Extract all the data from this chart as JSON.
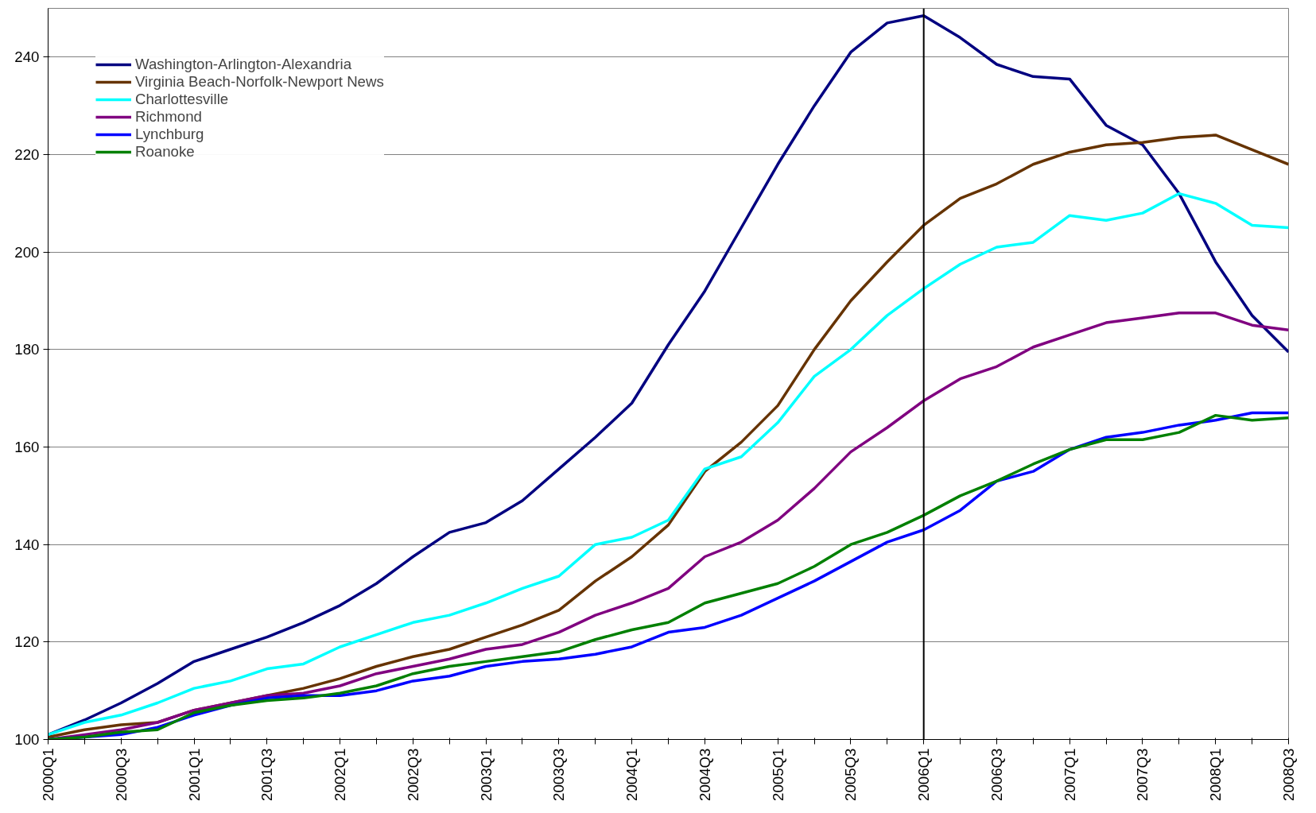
{
  "chart_data": {
    "type": "line",
    "categories": [
      "2000Q1",
      null,
      "2000Q3",
      null,
      "2001Q1",
      null,
      "2001Q3",
      null,
      "2002Q1",
      null,
      "2002Q3",
      null,
      "2003Q1",
      null,
      "2003Q3",
      null,
      "2004Q1",
      null,
      "2004Q3",
      null,
      "2005Q1",
      null,
      "2005Q3",
      null,
      "2006Q1",
      null,
      "2006Q3",
      null,
      "2007Q1",
      null,
      "2007Q3",
      null,
      "2008Q1",
      null,
      "2008Q3"
    ],
    "series": [
      {
        "name": "Washington-Arlington-Alexandria",
        "color": "#000080",
        "values": [
          101,
          104,
          107.5,
          111.5,
          116,
          118.5,
          121,
          124,
          127.5,
          132,
          137.5,
          142.5,
          144.5,
          149,
          155.5,
          162,
          169,
          181,
          192,
          205,
          218,
          230,
          241,
          247,
          248.5,
          244,
          238.5,
          236,
          235.5,
          226,
          222,
          212,
          198,
          187,
          179.5
        ]
      },
      {
        "name": "Virginia Beach-Norfolk-Newport News",
        "color": "#663300",
        "values": [
          100.5,
          102,
          103,
          103.5,
          106,
          107.5,
          109,
          110.5,
          112.5,
          115,
          117,
          118.5,
          121,
          123.5,
          126.5,
          132.5,
          137.5,
          144,
          155,
          161,
          168.5,
          180,
          190,
          198,
          205.5,
          211,
          214,
          218,
          220.5,
          222,
          222.5,
          223.5,
          224,
          221,
          218
        ]
      },
      {
        "name": "Charlottesville",
        "color": "#00ffff",
        "values": [
          101,
          103.5,
          105,
          107.5,
          110.5,
          112,
          114.5,
          115.5,
          119,
          121.5,
          124,
          125.5,
          128,
          131,
          133.5,
          140,
          141.5,
          145,
          155.5,
          158,
          165,
          174.5,
          180,
          187,
          192.5,
          197.5,
          201,
          202,
          207.5,
          206.5,
          208,
          212,
          210,
          205.5,
          205
        ]
      },
      {
        "name": "Richmond",
        "color": "#800080",
        "values": [
          100,
          101,
          102,
          103.5,
          106,
          107.5,
          109,
          109.5,
          111,
          113.5,
          115,
          116.5,
          118.5,
          119.5,
          122,
          125.5,
          128,
          131,
          137.5,
          140.5,
          145,
          151.5,
          159,
          164,
          169.5,
          174,
          176.5,
          180.5,
          183,
          185.5,
          186.5,
          187.5,
          187.5,
          185,
          184
        ]
      },
      {
        "name": "Lynchburg",
        "color": "#0000ff",
        "values": [
          100,
          100.5,
          101,
          102.5,
          105,
          107,
          108.5,
          109,
          109,
          110,
          112,
          113,
          115,
          116,
          116.5,
          117.5,
          119,
          122,
          123,
          125.5,
          129,
          132.5,
          136.5,
          140.5,
          143,
          147,
          153,
          155,
          159.5,
          162,
          163,
          164.5,
          165.5,
          167,
          167
        ]
      },
      {
        "name": "Roanoke",
        "color": "#008000",
        "values": [
          100,
          100.5,
          101.5,
          102,
          105.5,
          107,
          108,
          108.5,
          109.5,
          111,
          113.5,
          115,
          116,
          117,
          118,
          120.5,
          122.5,
          124,
          128,
          130,
          132,
          135.5,
          140,
          142.5,
          146,
          150,
          153,
          156.5,
          159.5,
          161.5,
          161.5,
          163,
          166.5,
          165.5,
          166
        ]
      }
    ],
    "ylim": [
      100,
      250
    ],
    "yticks": [
      100,
      120,
      140,
      160,
      180,
      200,
      220,
      240
    ],
    "ref_lines": [
      {
        "axis": "x",
        "value": "2006Q1",
        "color": "#000000"
      }
    ],
    "grid": "y",
    "legend": "top left",
    "marker": "none",
    "line_style": "solid"
  }
}
